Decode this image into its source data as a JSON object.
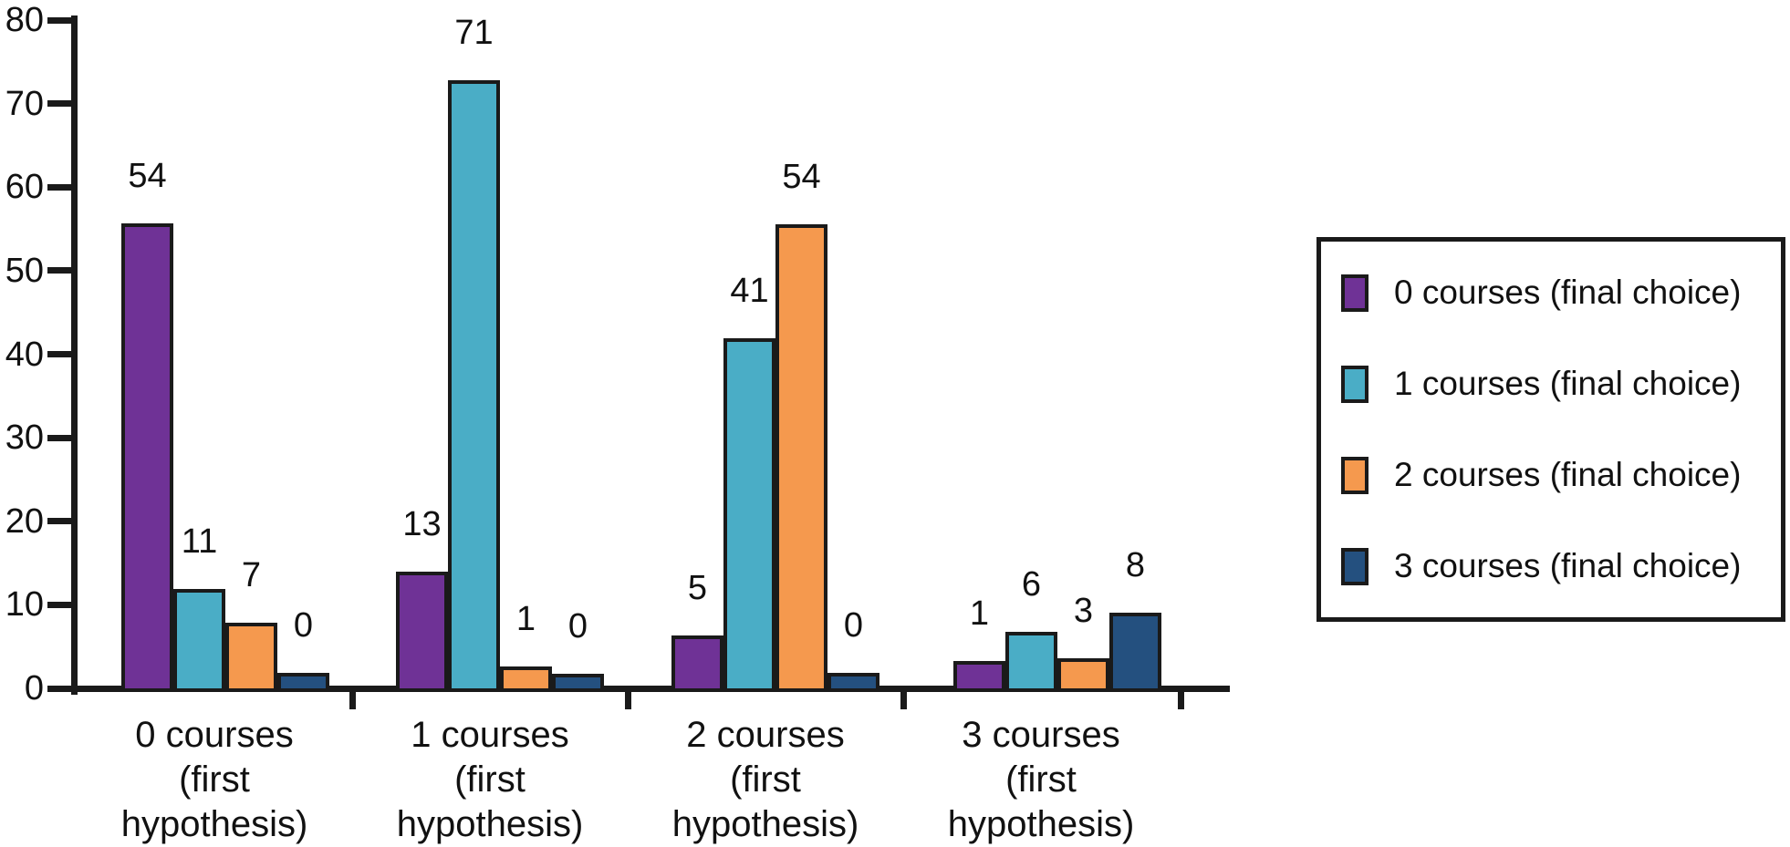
{
  "chart_data": {
    "type": "bar",
    "title": "",
    "xlabel": "",
    "ylabel": "",
    "grid": false,
    "background_color": "#FFFFFF",
    "axis_color": "#1A1A1A",
    "categories": [
      "0 courses (first hypothesis)",
      "1 courses (first hypothesis)",
      "2 courses (first hypothesis)",
      "3 courses (first hypothesis)"
    ],
    "categories_display": [
      "0 courses\n(first\nhypothesis)",
      "1 courses\n(first\nhypothesis)",
      "2 courses\n(first\nhypothesis)",
      "3 courses\n(first\nhypothesis)"
    ],
    "series": [
      {
        "name": "0 courses (final choice)",
        "color": "#6F3296",
        "values": [
          54,
          13,
          5,
          1
        ],
        "drawn_heights": [
          55.7,
          14.0,
          6.3,
          3.3
        ]
      },
      {
        "name": "1 courses (final choice)",
        "color": "#4AADC6",
        "values": [
          11,
          71,
          41,
          6
        ],
        "drawn_heights": [
          11.9,
          72.8,
          41.9,
          6.8
        ]
      },
      {
        "name": "2 courses (final choice)",
        "color": "#F5994E",
        "values": [
          7,
          1,
          54,
          3
        ],
        "drawn_heights": [
          7.9,
          2.6,
          55.5,
          3.6
        ]
      },
      {
        "name": "3 courses (final choice)",
        "color": "#24507F",
        "values": [
          0,
          0,
          0,
          8
        ],
        "drawn_heights": [
          1.9,
          1.7,
          1.9,
          9.1
        ]
      }
    ],
    "data_labels_shown": true,
    "y_axis": {
      "min": 0,
      "max": 80,
      "tick_step": 10,
      "ticks": [
        0,
        10,
        20,
        30,
        40,
        50,
        60,
        70,
        80
      ]
    },
    "legend": {
      "position": "right",
      "entries": [
        "0 courses (final choice)",
        "1 courses (final choice)",
        "2 courses (final choice)",
        "3 courses (final choice)"
      ]
    }
  }
}
